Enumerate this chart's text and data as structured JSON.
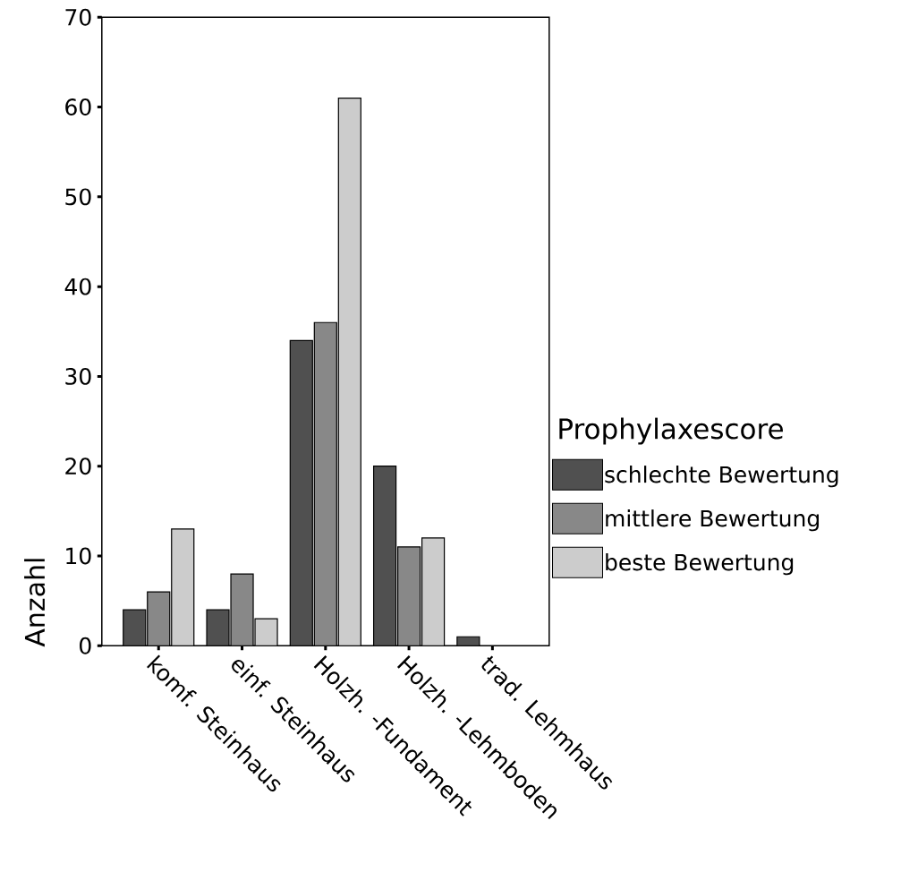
{
  "chart_data": {
    "type": "bar",
    "ylabel": "Anzahl",
    "legend_title": "Prophylaxescore",
    "categories": [
      "komf. Steinhaus",
      "einf. Steinhaus",
      "Holzh. -Fundament",
      "Holzh. -Lehmboden",
      "trad. Lehmhaus"
    ],
    "series": [
      {
        "name": "schlechte Bewertung",
        "color": "#505050",
        "values": [
          4,
          4,
          34,
          20,
          1
        ]
      },
      {
        "name": "mittlere Bewertung",
        "color": "#888888",
        "values": [
          6,
          8,
          36,
          11,
          null
        ]
      },
      {
        "name": "beste Bewertung",
        "color": "#cccccc",
        "values": [
          13,
          3,
          61,
          12,
          null
        ]
      }
    ],
    "ylim": [
      0,
      70
    ],
    "yticks": [
      0,
      10,
      20,
      30,
      40,
      50,
      60,
      70
    ],
    "grid": false,
    "legend": "right"
  }
}
